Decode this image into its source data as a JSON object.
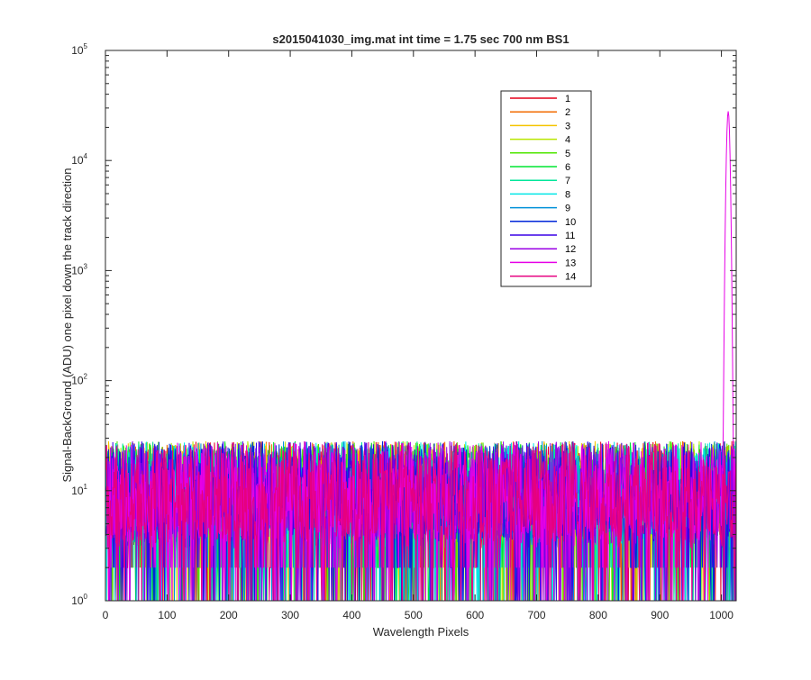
{
  "chart_data": {
    "type": "line",
    "title": "s2015041030_img.mat int time = 1.75 sec  700 nm BS1",
    "xlabel": "Wavelength Pixels",
    "ylabel": "Signal-BackGround (ADU) one pixel down the track direction",
    "xlim": [
      0,
      1024
    ],
    "ylim": [
      1,
      100000
    ],
    "yscale": "log",
    "grid": false,
    "legend_position": "top-right (inside, left of peak)",
    "x_ticks": [
      "0",
      "100",
      "200",
      "300",
      "400",
      "500",
      "600",
      "700",
      "800",
      "900",
      "1000"
    ],
    "y_ticks": [
      {
        "base": "10",
        "exp": "0"
      },
      {
        "base": "10",
        "exp": "1"
      },
      {
        "base": "10",
        "exp": "2"
      },
      {
        "base": "10",
        "exp": "3"
      },
      {
        "base": "10",
        "exp": "4"
      },
      {
        "base": "10",
        "exp": "5"
      }
    ],
    "noise_description": {
      "x_range": [
        1,
        1024
      ],
      "typical_range": [
        1,
        50
      ],
      "median": 10
    },
    "series": [
      {
        "name": "1",
        "color": "#e6001a",
        "peak_x": 1011,
        "peak_value": 30,
        "shape": "noise"
      },
      {
        "name": "2",
        "color": "#f26b00",
        "peak_x": 1011,
        "peak_value": 30,
        "shape": "noise"
      },
      {
        "name": "3",
        "color": "#f5c400",
        "peak_x": 1011,
        "peak_value": 30,
        "shape": "noise"
      },
      {
        "name": "4",
        "color": "#b9e600",
        "peak_x": 1011,
        "peak_value": 30,
        "shape": "noise"
      },
      {
        "name": "5",
        "color": "#4fe600",
        "peak_x": 1011,
        "peak_value": 30,
        "shape": "noise"
      },
      {
        "name": "6",
        "color": "#00e632",
        "peak_x": 1011,
        "peak_value": 30,
        "shape": "noise"
      },
      {
        "name": "7",
        "color": "#00e69a",
        "peak_x": 1011,
        "peak_value": 30,
        "shape": "noise"
      },
      {
        "name": "8",
        "color": "#00e6e6",
        "peak_x": 1011,
        "peak_value": 30,
        "shape": "noise"
      },
      {
        "name": "9",
        "color": "#0090d9",
        "peak_x": 1011,
        "peak_value": 30,
        "shape": "noise"
      },
      {
        "name": "10",
        "color": "#0026d9",
        "peak_x": 1011,
        "peak_value": 30,
        "shape": "noise"
      },
      {
        "name": "11",
        "color": "#3a00e6",
        "peak_x": 1011,
        "peak_value": 30,
        "shape": "noise"
      },
      {
        "name": "12",
        "color": "#9a00e6",
        "peak_x": 1011,
        "peak_value": 30,
        "shape": "noise"
      },
      {
        "name": "13",
        "color": "#e600e6",
        "peak_x": 1011,
        "peak_value": 28000,
        "shape": "noise+peak"
      },
      {
        "name": "14",
        "color": "#e60080",
        "peak_x": 1011,
        "peak_value": 30,
        "shape": "noise"
      }
    ]
  }
}
